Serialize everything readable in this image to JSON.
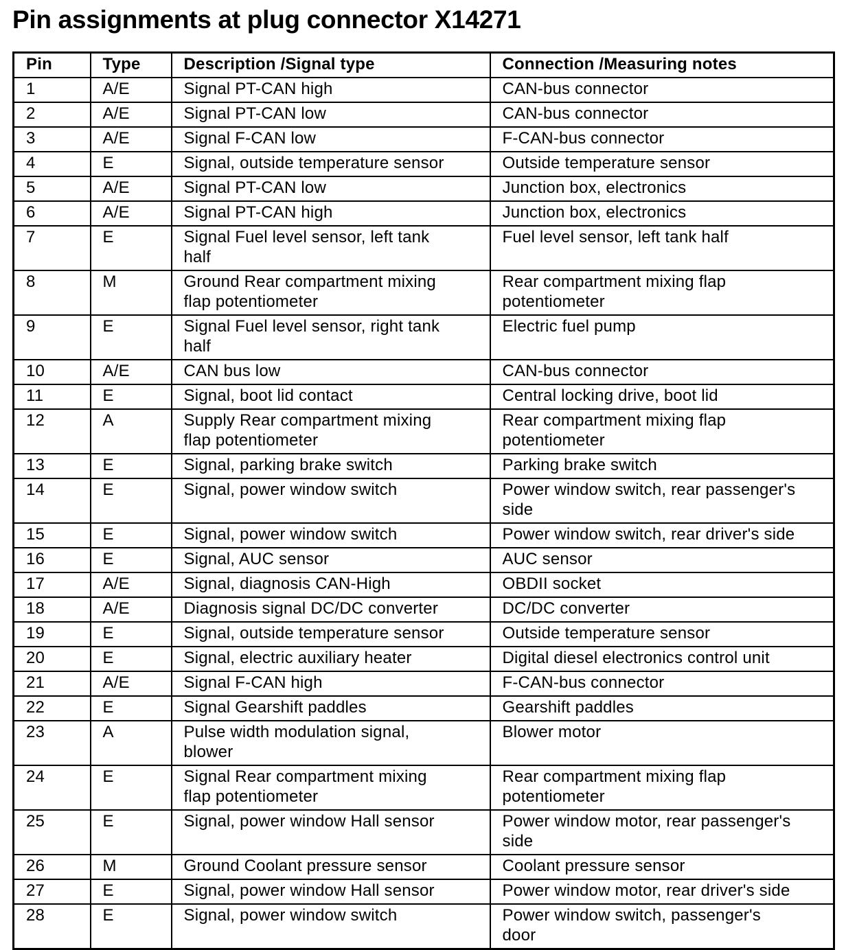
{
  "title": "Pin assignments at plug connector X14271",
  "headers": [
    "Pin",
    "Type",
    "Description /Signal type",
    "Connection /Measuring notes"
  ],
  "rows": [
    {
      "pin": "1",
      "type": "A/E",
      "description": "Signal PT-CAN high",
      "connection": "CAN-bus connector"
    },
    {
      "pin": "2",
      "type": "A/E",
      "description": "Signal PT-CAN low",
      "connection": "CAN-bus connector"
    },
    {
      "pin": "3",
      "type": "A/E",
      "description": "Signal F-CAN low",
      "connection": "F-CAN-bus connector"
    },
    {
      "pin": "4",
      "type": "E",
      "description": "Signal, outside temperature sensor",
      "connection": "Outside temperature sensor"
    },
    {
      "pin": "5",
      "type": "A/E",
      "description": "Signal PT-CAN low",
      "connection": "Junction box, electronics"
    },
    {
      "pin": "6",
      "type": "A/E",
      "description": "Signal PT-CAN high",
      "connection": "Junction box, electronics"
    },
    {
      "pin": "7",
      "type": "E",
      "description": "Signal Fuel level sensor, left tank\nhalf",
      "connection": "Fuel level sensor, left tank half"
    },
    {
      "pin": "8",
      "type": "M",
      "description": "Ground Rear compartment mixing\nflap potentiometer",
      "connection": "Rear compartment mixing flap\npotentiometer"
    },
    {
      "pin": "9",
      "type": "E",
      "description": "Signal Fuel level sensor, right tank\nhalf",
      "connection": "Electric fuel pump"
    },
    {
      "pin": "10",
      "type": "A/E",
      "description": "CAN bus low",
      "connection": "CAN-bus connector"
    },
    {
      "pin": "11",
      "type": "E",
      "description": "Signal, boot lid contact",
      "connection": "Central locking drive, boot lid"
    },
    {
      "pin": "12",
      "type": "A",
      "description": "Supply Rear compartment mixing\nflap potentiometer",
      "connection": "Rear compartment mixing flap\npotentiometer"
    },
    {
      "pin": "13",
      "type": "E",
      "description": "Signal, parking brake switch",
      "connection": "Parking brake switch"
    },
    {
      "pin": "14",
      "type": "E",
      "description": "Signal, power window switch",
      "connection": "Power window switch, rear passenger's\nside"
    },
    {
      "pin": "15",
      "type": "E",
      "description": "Signal, power window switch",
      "connection": "Power window switch, rear driver's side"
    },
    {
      "pin": "16",
      "type": "E",
      "description": "Signal, AUC sensor",
      "connection": "AUC sensor"
    },
    {
      "pin": "17",
      "type": "A/E",
      "description": "Signal, diagnosis CAN-High",
      "connection": "OBDII socket"
    },
    {
      "pin": "18",
      "type": "A/E",
      "description": "Diagnosis signal DC/DC converter",
      "connection": "DC/DC converter"
    },
    {
      "pin": "19",
      "type": "E",
      "description": "Signal, outside temperature sensor",
      "connection": "Outside temperature sensor"
    },
    {
      "pin": "20",
      "type": "E",
      "description": "Signal, electric auxiliary heater",
      "connection": "Digital diesel electronics control unit"
    },
    {
      "pin": "21",
      "type": "A/E",
      "description": "Signal F-CAN high",
      "connection": "F-CAN-bus connector"
    },
    {
      "pin": "22",
      "type": "E",
      "description": "Signal Gearshift paddles",
      "connection": "Gearshift paddles"
    },
    {
      "pin": "23",
      "type": "A",
      "description": "Pulse width modulation signal,\nblower",
      "connection": "Blower motor"
    },
    {
      "pin": "24",
      "type": "E",
      "description": "Signal Rear compartment mixing\nflap potentiometer",
      "connection": "Rear compartment mixing flap\npotentiometer"
    },
    {
      "pin": "25",
      "type": "E",
      "description": "Signal, power window Hall sensor",
      "connection": "Power window motor, rear passenger's\nside"
    },
    {
      "pin": "26",
      "type": "M",
      "description": "Ground Coolant pressure sensor",
      "connection": "Coolant pressure sensor"
    },
    {
      "pin": "27",
      "type": "E",
      "description": "Signal, power window Hall sensor",
      "connection": "Power window motor, rear driver's side"
    },
    {
      "pin": "28",
      "type": "E",
      "description": "Signal, power window switch",
      "connection": "Power window switch, passenger's\ndoor"
    }
  ]
}
